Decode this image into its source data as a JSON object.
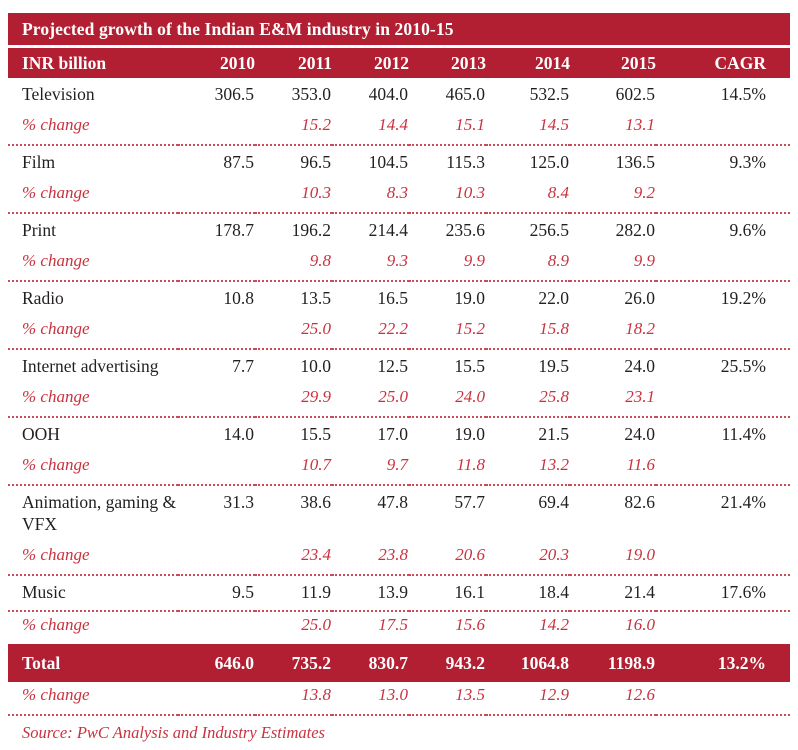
{
  "title": "Projected growth of the Indian E&M industry in 2010-15",
  "source": "Source: PwC Analysis and Industry Estimates",
  "pct_change_label": "% change",
  "colors": {
    "brand_red": "#b21f32",
    "accent_red": "#c8323f",
    "divider_red": "#cc4b58",
    "text_dark": "#231f20",
    "title_text": "#ffffff"
  },
  "chart_data": {
    "type": "table",
    "title": "Projected growth of the Indian E&M industry in 2010-15",
    "unit": "INR billion",
    "columns": [
      "INR billion",
      "2010",
      "2011",
      "2012",
      "2013",
      "2014",
      "2015",
      "CAGR"
    ],
    "rows": [
      {
        "label": "Television",
        "values": [
          "306.5",
          "353.0",
          "404.0",
          "465.0",
          "532.5",
          "602.5"
        ],
        "cagr": "14.5%",
        "pct_change": [
          "15.2",
          "14.4",
          "15.1",
          "14.5",
          "13.1"
        ],
        "total": false,
        "divider_before_pct": false,
        "divider_after_pct": true
      },
      {
        "label": "Film",
        "values": [
          "87.5",
          "96.5",
          "104.5",
          "115.3",
          "125.0",
          "136.5"
        ],
        "cagr": "9.3%",
        "pct_change": [
          "10.3",
          "8.3",
          "10.3",
          "8.4",
          "9.2"
        ],
        "total": false,
        "divider_before_pct": false,
        "divider_after_pct": true
      },
      {
        "label": "Print",
        "values": [
          "178.7",
          "196.2",
          "214.4",
          "235.6",
          "256.5",
          "282.0"
        ],
        "cagr": "9.6%",
        "pct_change": [
          "9.8",
          "9.3",
          "9.9",
          "8.9",
          "9.9"
        ],
        "total": false,
        "divider_before_pct": false,
        "divider_after_pct": true
      },
      {
        "label": "Radio",
        "values": [
          "10.8",
          "13.5",
          "16.5",
          "19.0",
          "22.0",
          "26.0"
        ],
        "cagr": "19.2%",
        "pct_change": [
          "25.0",
          "22.2",
          "15.2",
          "15.8",
          "18.2"
        ],
        "total": false,
        "divider_before_pct": false,
        "divider_after_pct": true
      },
      {
        "label": "Internet advertising",
        "values": [
          "7.7",
          "10.0",
          "12.5",
          "15.5",
          "19.5",
          "24.0"
        ],
        "cagr": "25.5%",
        "pct_change": [
          "29.9",
          "25.0",
          "24.0",
          "25.8",
          "23.1"
        ],
        "total": false,
        "divider_before_pct": false,
        "divider_after_pct": true
      },
      {
        "label": "OOH",
        "values": [
          "14.0",
          "15.5",
          "17.0",
          "19.0",
          "21.5",
          "24.0"
        ],
        "cagr": "11.4%",
        "pct_change": [
          "10.7",
          "9.7",
          "11.8",
          "13.2",
          "11.6"
        ],
        "total": false,
        "divider_before_pct": false,
        "divider_after_pct": true
      },
      {
        "label": "Animation, gaming & VFX",
        "values": [
          "31.3",
          "38.6",
          "47.8",
          "57.7",
          "69.4",
          "82.6"
        ],
        "cagr": "21.4%",
        "pct_change": [
          "23.4",
          "23.8",
          "20.6",
          "20.3",
          "19.0"
        ],
        "total": false,
        "divider_before_pct": false,
        "divider_after_pct": true
      },
      {
        "label": "Music",
        "values": [
          "9.5",
          "11.9",
          "13.9",
          "16.1",
          "18.4",
          "21.4"
        ],
        "cagr": "17.6%",
        "pct_change": [
          "25.0",
          "17.5",
          "15.6",
          "14.2",
          "16.0"
        ],
        "total": false,
        "divider_before_pct": true,
        "divider_after_pct": false
      },
      {
        "label": "Total",
        "values": [
          "646.0",
          "735.2",
          "830.7",
          "943.2",
          "1064.8",
          "1198.9"
        ],
        "cagr": "13.2%",
        "pct_change": [
          "13.8",
          "13.0",
          "13.5",
          "12.9",
          "12.6"
        ],
        "total": true,
        "divider_before_pct": false,
        "divider_after_pct": true
      }
    ]
  }
}
